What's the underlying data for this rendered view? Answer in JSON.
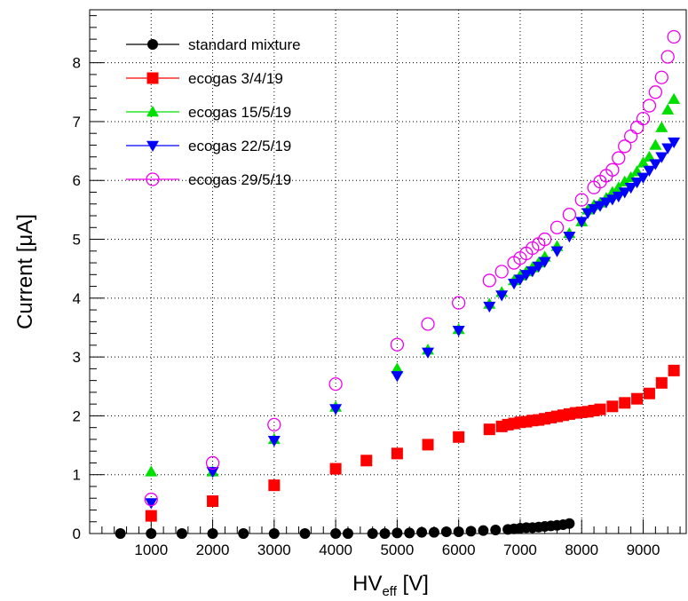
{
  "chart_data": {
    "type": "scatter",
    "xlabel": "HV",
    "xlabel_sub": "eff",
    "xlabel_unit": "[V]",
    "ylabel": "Current [μA]",
    "xlim": [
      0,
      9700
    ],
    "ylim": [
      0,
      8.9
    ],
    "x_ticks": [
      1000,
      2000,
      3000,
      4000,
      5000,
      6000,
      7000,
      8000,
      9000
    ],
    "y_ticks": [
      0,
      1,
      2,
      3,
      4,
      5,
      6,
      7,
      8
    ],
    "grid": true,
    "legend_position": "top-left",
    "series": [
      {
        "name": "standard mixture",
        "color": "#000000",
        "marker": "circle-filled",
        "x": [
          500,
          1000,
          1500,
          2000,
          2500,
          3000,
          3500,
          4000,
          4200,
          4600,
          4800,
          5000,
          5200,
          5400,
          5600,
          5800,
          6000,
          6200,
          6400,
          6600,
          6800,
          6900,
          7000,
          7100,
          7200,
          7300,
          7400,
          7500,
          7600,
          7700,
          7800
        ],
        "y": [
          0.0,
          0.0,
          0.0,
          0.0,
          0.0,
          0.0,
          0.0,
          0.0,
          0.0,
          0.0,
          0.0,
          0.01,
          0.01,
          0.02,
          0.02,
          0.03,
          0.03,
          0.04,
          0.05,
          0.06,
          0.07,
          0.08,
          0.09,
          0.1,
          0.1,
          0.11,
          0.12,
          0.13,
          0.14,
          0.15,
          0.17
        ]
      },
      {
        "name": "ecogas 3/4/19",
        "color": "#ff0000",
        "marker": "square-filled",
        "x": [
          1000,
          2000,
          3000,
          4000,
          4500,
          5000,
          5500,
          6000,
          6500,
          6700,
          6800,
          6900,
          7000,
          7100,
          7200,
          7300,
          7400,
          7500,
          7600,
          7700,
          7800,
          7900,
          8000,
          8100,
          8200,
          8300,
          8500,
          8700,
          8900,
          9100,
          9300,
          9500
        ],
        "y": [
          0.3,
          0.55,
          0.82,
          1.1,
          1.24,
          1.36,
          1.51,
          1.64,
          1.77,
          1.82,
          1.85,
          1.87,
          1.89,
          1.9,
          1.92,
          1.93,
          1.95,
          1.97,
          1.99,
          2.01,
          2.03,
          2.05,
          2.06,
          2.07,
          2.09,
          2.11,
          2.16,
          2.22,
          2.29,
          2.38,
          2.56,
          2.77
        ]
      },
      {
        "name": "ecogas 15/5/19",
        "color": "#00e000",
        "marker": "triangle-up-filled",
        "x": [
          1000,
          2000,
          3000,
          4000,
          5000,
          5500,
          6000,
          6500,
          6700,
          6900,
          7000,
          7100,
          7200,
          7300,
          7400,
          7600,
          7800,
          8000,
          8100,
          8200,
          8300,
          8400,
          8500,
          8600,
          8700,
          8800,
          8900,
          9000,
          9100,
          9200,
          9300,
          9400,
          9500
        ],
        "y": [
          1.05,
          1.05,
          1.6,
          2.15,
          2.8,
          3.12,
          3.47,
          3.9,
          4.1,
          4.3,
          4.38,
          4.45,
          4.52,
          4.6,
          4.7,
          4.88,
          5.1,
          5.3,
          5.5,
          5.58,
          5.62,
          5.7,
          5.8,
          5.88,
          5.98,
          6.05,
          6.15,
          6.3,
          6.4,
          6.6,
          6.9,
          7.2,
          7.38
        ]
      },
      {
        "name": "ecogas 22/5/19",
        "color": "#0000ff",
        "marker": "triangle-down-filled",
        "x": [
          1000,
          2000,
          3000,
          4000,
          5000,
          5500,
          6000,
          6500,
          6700,
          6900,
          7000,
          7100,
          7200,
          7300,
          7400,
          7600,
          7800,
          8000,
          8100,
          8200,
          8300,
          8400,
          8500,
          8600,
          8700,
          8800,
          8900,
          9000,
          9100,
          9200,
          9300,
          9400,
          9500
        ],
        "y": [
          0.52,
          1.05,
          1.58,
          2.12,
          2.68,
          3.08,
          3.45,
          3.86,
          4.05,
          4.25,
          4.32,
          4.4,
          4.46,
          4.54,
          4.62,
          4.8,
          5.05,
          5.3,
          5.45,
          5.52,
          5.57,
          5.63,
          5.68,
          5.73,
          5.8,
          5.88,
          5.97,
          6.05,
          6.17,
          6.28,
          6.4,
          6.55,
          6.65
        ]
      },
      {
        "name": "ecogas 29/5/19",
        "color": "#ee00ee",
        "marker": "circle-open",
        "x": [
          1000,
          2000,
          3000,
          4000,
          5000,
          5500,
          6000,
          6500,
          6700,
          6900,
          7000,
          7100,
          7200,
          7300,
          7400,
          7600,
          7800,
          8000,
          8200,
          8300,
          8400,
          8500,
          8600,
          8700,
          8800,
          8900,
          9000,
          9100,
          9200,
          9300,
          9400,
          9500
        ],
        "y": [
          0.58,
          1.2,
          1.85,
          2.54,
          3.21,
          3.56,
          3.92,
          4.3,
          4.45,
          4.6,
          4.68,
          4.76,
          4.85,
          4.92,
          5.0,
          5.2,
          5.42,
          5.67,
          5.88,
          5.98,
          6.08,
          6.18,
          6.38,
          6.58,
          6.75,
          6.9,
          7.05,
          7.27,
          7.5,
          7.75,
          8.1,
          8.44
        ]
      }
    ]
  }
}
